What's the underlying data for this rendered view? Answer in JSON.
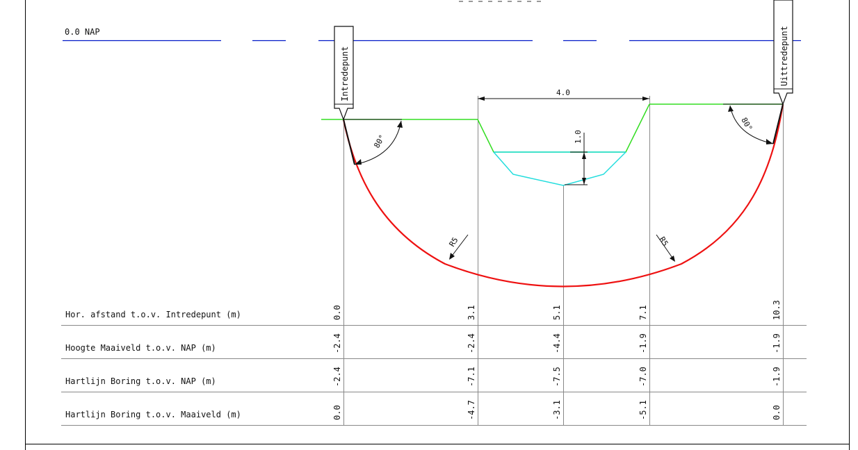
{
  "reference_line": {
    "label": "0.0 NAP",
    "color": "#0018c8"
  },
  "entry_point": {
    "label": "Intredepunt",
    "angle": "80°"
  },
  "exit_point": {
    "label": "Uittredepunt",
    "angle": "80°"
  },
  "channel": {
    "width_label": "4.0",
    "depth_label": "1.0"
  },
  "bend_radius_label": "R5",
  "colors": {
    "ground": "#33dd22",
    "water": "#22dddd",
    "bore": "#ee1111",
    "grid": "#888888"
  },
  "table": {
    "rows": [
      {
        "label": "Hor. afstand t.o.v. Intredepunt (m)",
        "values": [
          "0.0",
          "3.1",
          "5.1",
          "7.1",
          "10.3"
        ]
      },
      {
        "label": "Hoogte Maaiveld t.o.v. NAP (m)",
        "values": [
          "-2.4",
          "-2.4",
          "-4.4",
          "-1.9",
          "-1.9"
        ]
      },
      {
        "label": "Hartlijn Boring t.o.v. NAP (m)",
        "values": [
          "-2.4",
          "-7.1",
          "-7.5",
          "-7.0",
          "-1.9"
        ]
      },
      {
        "label": "Hartlijn Boring t.o.v. Maaiveld (m)",
        "values": [
          "0.0",
          "-4.7",
          "-3.1",
          "-5.1",
          "0.0"
        ]
      }
    ]
  }
}
